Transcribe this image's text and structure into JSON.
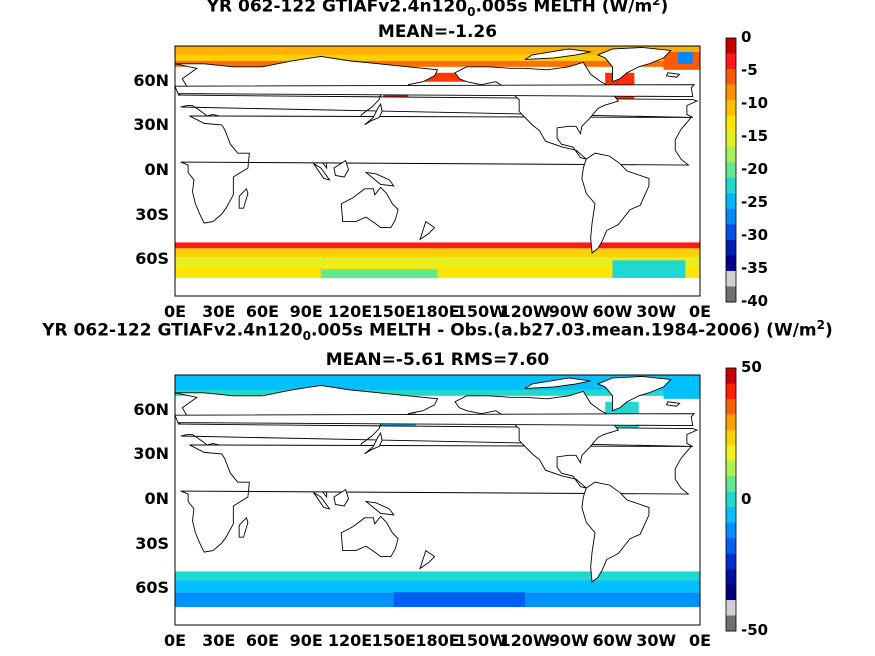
{
  "chart_data": [
    {
      "type": "heatmap",
      "title_main": "YR 062-122 GTIAFv2.4n120",
      "title_sub": "0",
      "title_rest": ".005s  MELTH (W/m",
      "title_sup": "2",
      "title_end": ")",
      "subtitle": "MEAN=-1.26",
      "lat_ticks": [
        "60N",
        "30N",
        "0N",
        "30S",
        "60S"
      ],
      "lon_ticks": [
        "0E",
        "30E",
        "60E",
        "90E",
        "120E",
        "150E",
        "180E",
        "150W",
        "120W",
        "90W",
        "60W",
        "30W",
        "0E"
      ],
      "colorbar": {
        "ticks": [
          "0",
          "-5",
          "-10",
          "-15",
          "-20",
          "-25",
          "-30",
          "-35",
          "-40"
        ],
        "range": [
          -40,
          0
        ],
        "colors": [
          "#c80000",
          "#ff1a1a",
          "#ff5a00",
          "#ff9000",
          "#ffbf00",
          "#ffe600",
          "#e6f020",
          "#a8f058",
          "#60e890",
          "#20d8d0",
          "#00b8ff",
          "#0088ff",
          "#0050e6",
          "#0020b4",
          "#000090",
          "#d0d0d0",
          "#707070"
        ]
      },
      "field_description_values": {
        "southern_ocean_band_north_edge": -5,
        "southern_ocean_band_south": -15,
        "arctic": -10,
        "north_atlantic_edge": -3
      }
    },
    {
      "type": "heatmap",
      "title_main": "YR 062-122 GTIAFv2.4n120",
      "title_sub": "0",
      "title_rest": ".005s MELTH - Obs.(a.b27.03.mean.1984-2006) (W/m",
      "title_sup": "2",
      "title_end": ")",
      "subtitle": "MEAN=-5.61 RMS=7.60",
      "lat_ticks": [
        "60N",
        "30N",
        "0N",
        "30S",
        "60S"
      ],
      "lon_ticks": [
        "0E",
        "30E",
        "60E",
        "90E",
        "120E",
        "150E",
        "180E",
        "150W",
        "120W",
        "90W",
        "60W",
        "30W",
        "0E"
      ],
      "colorbar": {
        "ticks": [
          "50",
          "0",
          "-50"
        ],
        "range": [
          -50,
          50
        ],
        "colors": [
          "#c80000",
          "#ff2000",
          "#ff6000",
          "#ffa000",
          "#ffd000",
          "#f0f020",
          "#b0f050",
          "#60e890",
          "#20d8d0",
          "#00c0ff",
          "#0090ff",
          "#0060f0",
          "#0030c8",
          "#0010a0",
          "#000080",
          "#d0d0d0",
          "#707070"
        ]
      }
    }
  ]
}
